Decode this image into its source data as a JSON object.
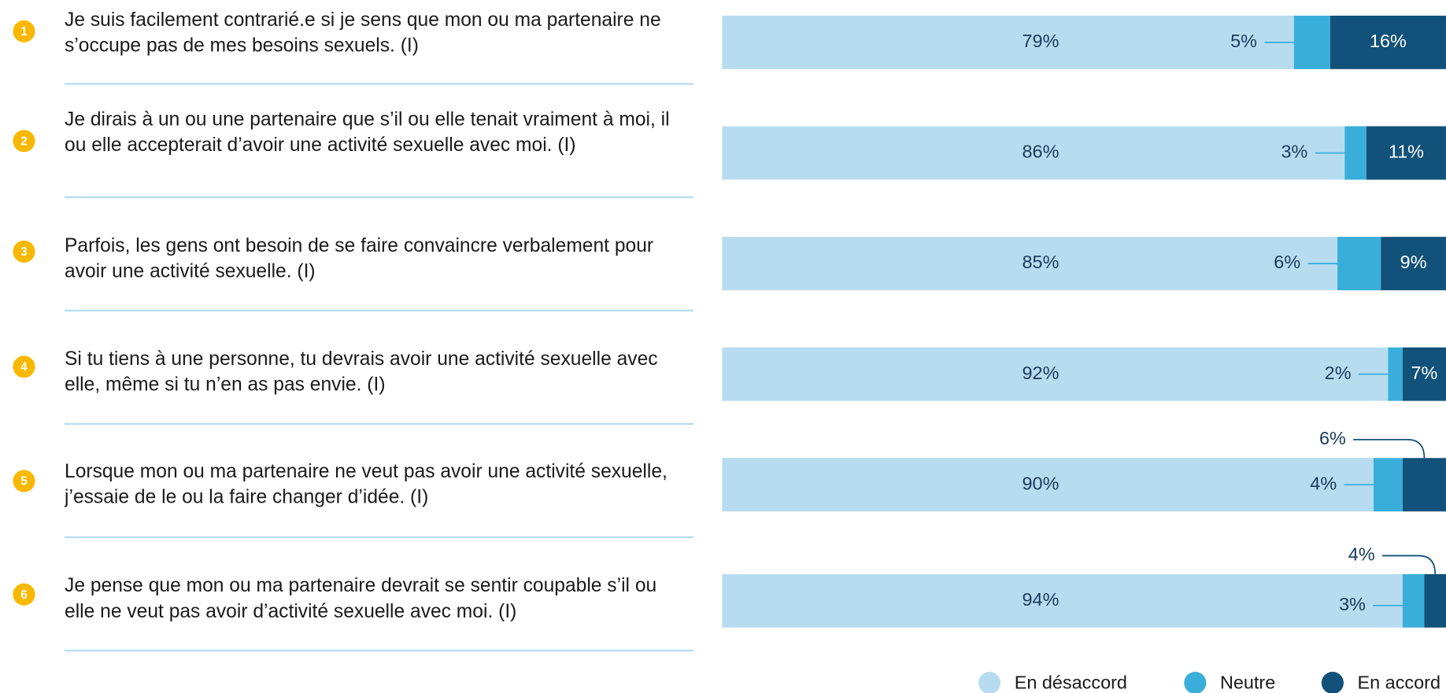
{
  "chart_data": {
    "type": "stacked_barh",
    "item_numbers": [
      1,
      2,
      3,
      4,
      5,
      6
    ],
    "categories": [
      "Je suis facilement contrarié.e si je sens que mon ou ma partenaire ne s’occupe pas de mes besoins sexuels. (I)",
      "Je dirais à un ou une partenaire que s’il ou elle tenait vraiment à moi, il ou elle accepterait d’avoir une activité sexuelle avec moi. (I)",
      "Parfois, les gens ont besoin de se faire convaincre verbalement pour avoir une activité sexuelle. (I)",
      "Si tu tiens à une personne, tu devrais avoir une activité sexuelle avec elle, même si tu n’en as pas envie. (I)",
      "Lorsque mon ou ma partenaire ne veut pas avoir une activité sexuelle, j’essaie de le ou la faire changer d’idée. (I)",
      "Je pense que mon ou ma partenaire devrait se sentir coupable s’il ou elle ne veut pas avoir d’activité sexuelle avec moi. (I)"
    ],
    "series": [
      {
        "name": "En désaccord",
        "color": "#b8dcef",
        "values": [
          79,
          86,
          85,
          92,
          90,
          94
        ],
        "value_labels": [
          "79%",
          "86%",
          "85%",
          "92%",
          "90%",
          "94%"
        ]
      },
      {
        "name": "Neutre",
        "color": "#3aaedb",
        "values": [
          5,
          3,
          6,
          2,
          4,
          3
        ],
        "value_labels": [
          "5%",
          "3%",
          "6%",
          "2%",
          "4%",
          "3%"
        ]
      },
      {
        "name": "En accord",
        "color": "#12527a",
        "values": [
          16,
          11,
          9,
          7,
          6,
          4
        ],
        "value_labels": [
          "16%",
          "11%",
          "9%",
          "7%",
          "6%",
          "4%"
        ]
      }
    ],
    "xlim": [
      0,
      100
    ],
    "badge_color": "#f9b800",
    "separator_color": "#b8dcef"
  }
}
